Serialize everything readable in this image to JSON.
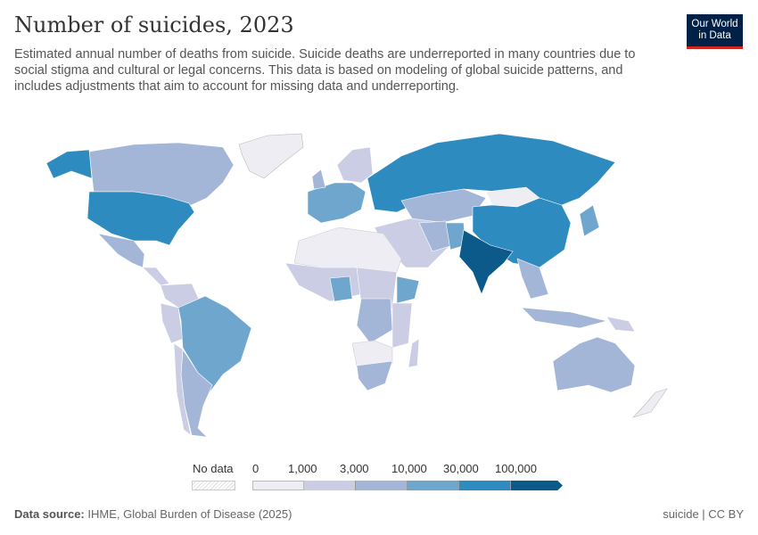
{
  "header": {
    "title": "Number of suicides, 2023",
    "subtitle": "Estimated annual number of deaths from suicide. Suicide deaths are underreported in many countries due to social stigma and cultural or legal concerns. This data is based on modeling of global suicide patterns, and includes adjustments that aim to account for missing data and underreporting.",
    "logo": "Our World in Data"
  },
  "legend": {
    "no_data": "No data",
    "ticks": [
      "0",
      "1,000",
      "3,000",
      "10,000",
      "30,000",
      "100,000"
    ],
    "colors": [
      "#eeedf4",
      "#cbcde4",
      "#a3b6d8",
      "#6ea6cd",
      "#2e8bc0",
      "#0b5a8a"
    ],
    "no_data_color": "#e8e8e8"
  },
  "footer": {
    "source_label": "Data source:",
    "source": "IHME, Global Burden of Disease (2025)",
    "license": "suicide | CC BY"
  }
}
